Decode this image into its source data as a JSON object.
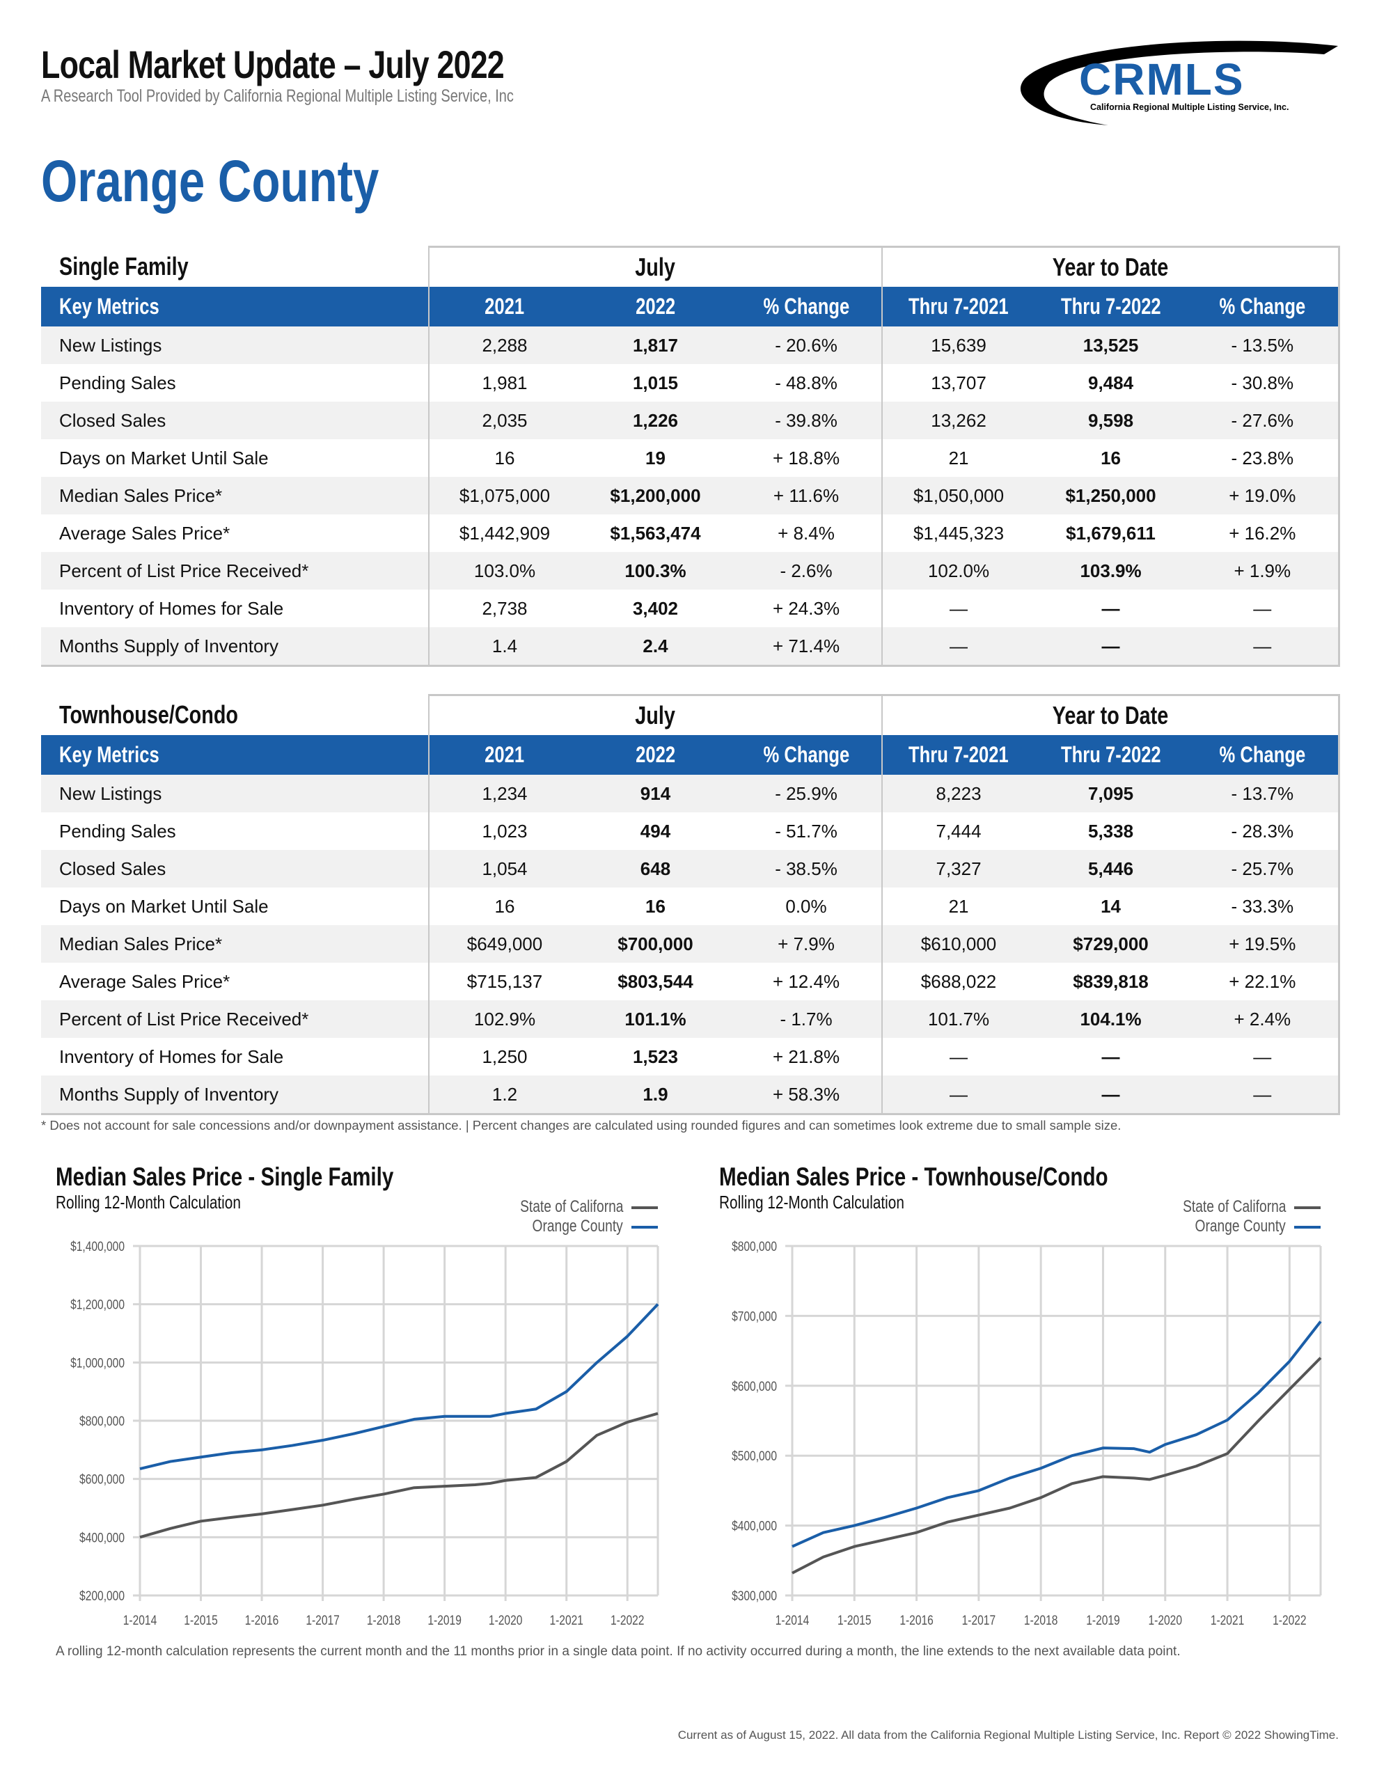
{
  "header": {
    "title": "Local Market Update – July 2022",
    "subtitle": "A Research Tool Provided by California Regional Multiple Listing Service, Inc",
    "logo_text": "CRMLS",
    "logo_subtext": "California Regional Multiple Listing Service, Inc.",
    "region": "Orange County"
  },
  "colors": {
    "brand_blue": "#1a5ea8",
    "state_line": "#555555",
    "county_line": "#1a5ea8",
    "row_alt": "#f1f1f1"
  },
  "tables": [
    {
      "category": "Single Family",
      "group_july": "July",
      "group_ytd": "Year to Date",
      "columns": [
        "Key Metrics",
        "2021",
        "2022",
        "% Change",
        "Thru 7-2021",
        "Thru 7-2022",
        "% Change"
      ],
      "rows": [
        [
          "New Listings",
          "2,288",
          "1,817",
          "- 20.6%",
          "15,639",
          "13,525",
          "- 13.5%"
        ],
        [
          "Pending Sales",
          "1,981",
          "1,015",
          "- 48.8%",
          "13,707",
          "9,484",
          "- 30.8%"
        ],
        [
          "Closed Sales",
          "2,035",
          "1,226",
          "- 39.8%",
          "13,262",
          "9,598",
          "- 27.6%"
        ],
        [
          "Days on Market Until Sale",
          "16",
          "19",
          "+ 18.8%",
          "21",
          "16",
          "- 23.8%"
        ],
        [
          "Median Sales Price*",
          "$1,075,000",
          "$1,200,000",
          "+ 11.6%",
          "$1,050,000",
          "$1,250,000",
          "+ 19.0%"
        ],
        [
          "Average Sales Price*",
          "$1,442,909",
          "$1,563,474",
          "+ 8.4%",
          "$1,445,323",
          "$1,679,611",
          "+ 16.2%"
        ],
        [
          "Percent of List Price Received*",
          "103.0%",
          "100.3%",
          "- 2.6%",
          "102.0%",
          "103.9%",
          "+ 1.9%"
        ],
        [
          "Inventory of Homes for Sale",
          "2,738",
          "3,402",
          "+ 24.3%",
          "—",
          "—",
          "—"
        ],
        [
          "Months Supply of Inventory",
          "1.4",
          "2.4",
          "+ 71.4%",
          "—",
          "—",
          "—"
        ]
      ]
    },
    {
      "category": "Townhouse/Condo",
      "group_july": "July",
      "group_ytd": "Year to Date",
      "columns": [
        "Key Metrics",
        "2021",
        "2022",
        "% Change",
        "Thru 7-2021",
        "Thru 7-2022",
        "% Change"
      ],
      "rows": [
        [
          "New Listings",
          "1,234",
          "914",
          "- 25.9%",
          "8,223",
          "7,095",
          "- 13.7%"
        ],
        [
          "Pending Sales",
          "1,023",
          "494",
          "- 51.7%",
          "7,444",
          "5,338",
          "- 28.3%"
        ],
        [
          "Closed Sales",
          "1,054",
          "648",
          "- 38.5%",
          "7,327",
          "5,446",
          "- 25.7%"
        ],
        [
          "Days on Market Until Sale",
          "16",
          "16",
          "0.0%",
          "21",
          "14",
          "- 33.3%"
        ],
        [
          "Median Sales Price*",
          "$649,000",
          "$700,000",
          "+ 7.9%",
          "$610,000",
          "$729,000",
          "+ 19.5%"
        ],
        [
          "Average Sales Price*",
          "$715,137",
          "$803,544",
          "+ 12.4%",
          "$688,022",
          "$839,818",
          "+ 22.1%"
        ],
        [
          "Percent of List Price Received*",
          "102.9%",
          "101.1%",
          "- 1.7%",
          "101.7%",
          "104.1%",
          "+ 2.4%"
        ],
        [
          "Inventory of Homes for Sale",
          "1,250",
          "1,523",
          "+ 21.8%",
          "—",
          "—",
          "—"
        ],
        [
          "Months Supply of Inventory",
          "1.2",
          "1.9",
          "+ 58.3%",
          "—",
          "—",
          "—"
        ]
      ]
    }
  ],
  "footnote": "* Does not account for sale concessions and/or downpayment assistance. | Percent changes are calculated using rounded figures and can sometimes look extreme due to small sample size.",
  "chart_data": [
    {
      "type": "line",
      "title": "Median Sales Price - Single Family",
      "subtitle": "Rolling 12-Month Calculation",
      "legend_position": "top-right",
      "grid": true,
      "ylim": [
        200000,
        1400000
      ],
      "yticks": [
        "$200,000",
        "$400,000",
        "$600,000",
        "$800,000",
        "$1,000,000",
        "$1,200,000",
        "$1,400,000"
      ],
      "ytick_values": [
        200000,
        400000,
        600000,
        800000,
        1000000,
        1200000,
        1400000
      ],
      "xticks": [
        "1-2014",
        "1-2015",
        "1-2016",
        "1-2017",
        "1-2018",
        "1-2019",
        "1-2020",
        "1-2021",
        "1-2022"
      ],
      "x": [
        "2014-01",
        "2014-07",
        "2015-01",
        "2015-07",
        "2016-01",
        "2016-07",
        "2017-01",
        "2017-07",
        "2018-01",
        "2018-07",
        "2019-01",
        "2019-07",
        "2019-10",
        "2020-01",
        "2020-07",
        "2021-01",
        "2021-07",
        "2022-01",
        "2022-07"
      ],
      "series": [
        {
          "name": "State of Californa",
          "color": "#555555",
          "values": [
            400000,
            430000,
            455000,
            468000,
            480000,
            495000,
            510000,
            530000,
            548000,
            570000,
            575000,
            580000,
            585000,
            595000,
            605000,
            660000,
            750000,
            795000,
            825000
          ]
        },
        {
          "name": "Orange County",
          "color": "#1a5ea8",
          "values": [
            635000,
            660000,
            675000,
            690000,
            700000,
            715000,
            733000,
            755000,
            780000,
            805000,
            815000,
            815000,
            815000,
            825000,
            840000,
            900000,
            1000000,
            1090000,
            1200000
          ]
        }
      ]
    },
    {
      "type": "line",
      "title": "Median Sales Price - Townhouse/Condo",
      "subtitle": "Rolling 12-Month Calculation",
      "legend_position": "top-right",
      "grid": true,
      "ylim": [
        300000,
        800000
      ],
      "yticks": [
        "$300,000",
        "$400,000",
        "$500,000",
        "$600,000",
        "$700,000",
        "$800,000"
      ],
      "ytick_values": [
        300000,
        400000,
        500000,
        600000,
        700000,
        800000
      ],
      "xticks": [
        "1-2014",
        "1-2015",
        "1-2016",
        "1-2017",
        "1-2018",
        "1-2019",
        "1-2020",
        "1-2021",
        "1-2022"
      ],
      "x": [
        "2014-01",
        "2014-07",
        "2015-01",
        "2015-07",
        "2016-01",
        "2016-07",
        "2017-01",
        "2017-07",
        "2018-01",
        "2018-07",
        "2019-01",
        "2019-07",
        "2019-10",
        "2020-01",
        "2020-07",
        "2021-01",
        "2021-07",
        "2022-01",
        "2022-07"
      ],
      "series": [
        {
          "name": "State of Californa",
          "color": "#555555",
          "values": [
            332000,
            355000,
            370000,
            380000,
            390000,
            405000,
            415000,
            425000,
            440000,
            460000,
            470000,
            468000,
            466000,
            472000,
            485000,
            503000,
            550000,
            595000,
            640000
          ]
        },
        {
          "name": "Orange County",
          "color": "#1a5ea8",
          "values": [
            370000,
            390000,
            400000,
            412000,
            425000,
            440000,
            450000,
            468000,
            482000,
            500000,
            511000,
            510000,
            505000,
            516000,
            530000,
            551000,
            590000,
            635000,
            692000
          ]
        }
      ]
    }
  ],
  "chart_note": "A rolling 12-month calculation represents the current month and the 11 months prior in a single data point. If no activity occurred during a month, the line extends to the next available data point.",
  "footer": "Current as of August 15, 2022. All data from the California Regional Multiple Listing Service, Inc. Report © 2022 ShowingTime."
}
